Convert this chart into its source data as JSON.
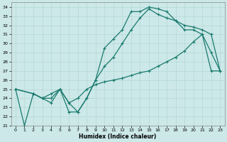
{
  "xlabel": "Humidex (Indice chaleur)",
  "xlim": [
    -0.5,
    23.5
  ],
  "ylim": [
    21,
    34.5
  ],
  "yticks": [
    21,
    22,
    23,
    24,
    25,
    26,
    27,
    28,
    29,
    30,
    31,
    32,
    33,
    34
  ],
  "xticks": [
    0,
    1,
    2,
    3,
    4,
    5,
    6,
    7,
    8,
    9,
    10,
    11,
    12,
    13,
    14,
    15,
    16,
    17,
    18,
    19,
    20,
    21,
    22,
    23
  ],
  "bg_color": "#cce8e8",
  "line_color": "#1a7a6e",
  "line1_x": [
    0,
    1,
    2,
    3,
    4,
    5,
    6,
    7,
    8,
    9,
    10,
    11,
    12,
    13,
    14,
    15,
    16,
    17,
    18,
    19,
    20,
    21,
    22,
    23
  ],
  "line1_y": [
    25,
    21,
    24.5,
    24,
    24.5,
    25,
    22.5,
    22.5,
    24,
    26,
    29.5,
    30.5,
    31.5,
    33.5,
    33.5,
    34.0,
    33.8,
    33.5,
    32.5,
    31.5,
    31.5,
    31.0,
    29.0,
    27.0
  ],
  "line2_x": [
    0,
    2,
    3,
    4,
    5,
    6,
    7,
    8,
    9,
    10,
    11,
    12,
    13,
    14,
    15,
    16,
    17,
    18,
    19,
    20,
    21,
    22,
    23
  ],
  "line2_y": [
    25,
    24.5,
    24,
    23.5,
    25,
    23.5,
    22.5,
    24,
    26,
    27.5,
    28.5,
    30,
    31.5,
    32.8,
    33.8,
    33.2,
    32.8,
    32.5,
    32.0,
    31.8,
    31.5,
    31.0,
    27.0
  ],
  "line3_x": [
    0,
    2,
    3,
    4,
    5,
    6,
    7,
    8,
    9,
    10,
    11,
    12,
    13,
    14,
    15,
    16,
    17,
    18,
    19,
    20,
    21,
    22,
    23
  ],
  "line3_y": [
    25,
    24.5,
    24,
    24,
    25,
    23.5,
    24,
    25,
    25.5,
    25.8,
    26.0,
    26.2,
    26.5,
    26.8,
    27.0,
    27.5,
    28.0,
    28.5,
    29.2,
    30.2,
    31.0,
    27.0,
    27.0
  ]
}
